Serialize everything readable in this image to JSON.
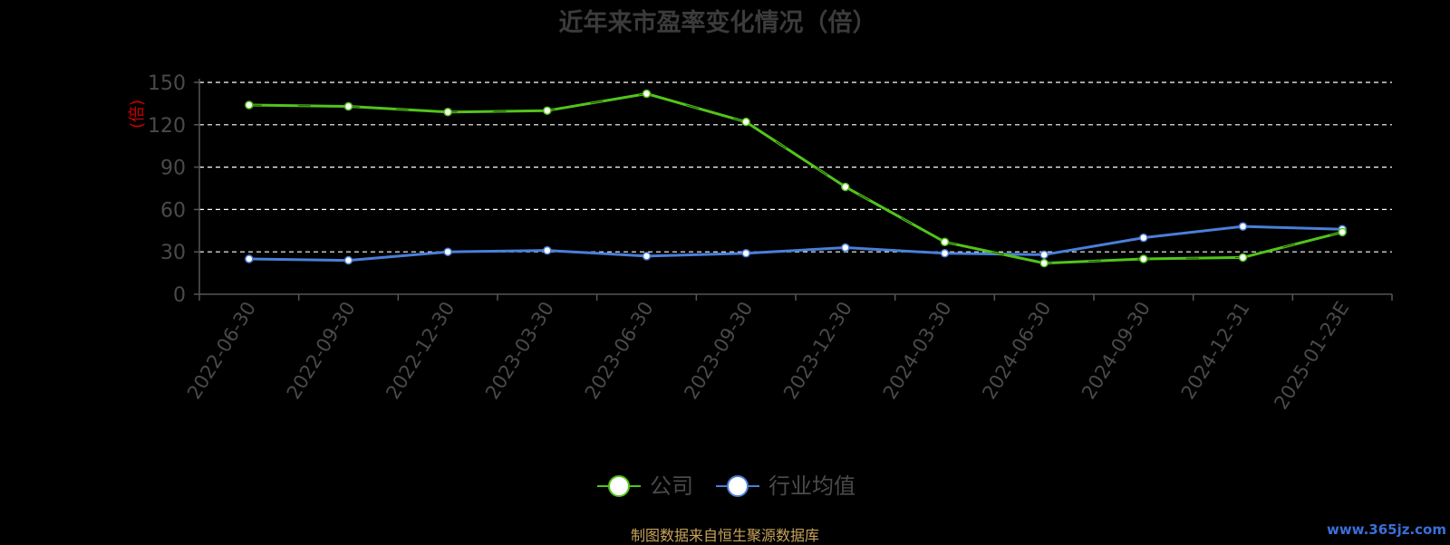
{
  "chart_data": {
    "type": "line",
    "title": "近年来市盈率变化情况（倍）",
    "ylabel": "(倍)",
    "xlabel": "",
    "categories": [
      "2022-06-30",
      "2022-09-30",
      "2022-12-30",
      "2023-03-30",
      "2023-06-30",
      "2023-09-30",
      "2023-12-30",
      "2024-03-30",
      "2024-06-30",
      "2024-09-30",
      "2024-12-31",
      "2025-01-23E"
    ],
    "yticks": [
      "0",
      "30",
      "60",
      "90",
      "120",
      "150"
    ],
    "ylim": [
      0,
      150
    ],
    "grid": true,
    "legend_position": "bottom-center",
    "series": [
      {
        "name": "公司",
        "color": "#52c41a",
        "values": [
          134,
          133,
          129,
          130,
          142,
          122,
          76,
          37,
          22,
          25,
          26,
          44
        ]
      },
      {
        "name": "行业均值",
        "color": "#4a7fd8",
        "values": [
          25,
          24,
          30,
          31,
          27,
          29,
          33,
          29,
          28,
          40,
          48,
          46
        ]
      }
    ]
  },
  "footer": {
    "source": "制图数据来自恒生聚源数据库",
    "watermark": "www.365jz.com"
  }
}
